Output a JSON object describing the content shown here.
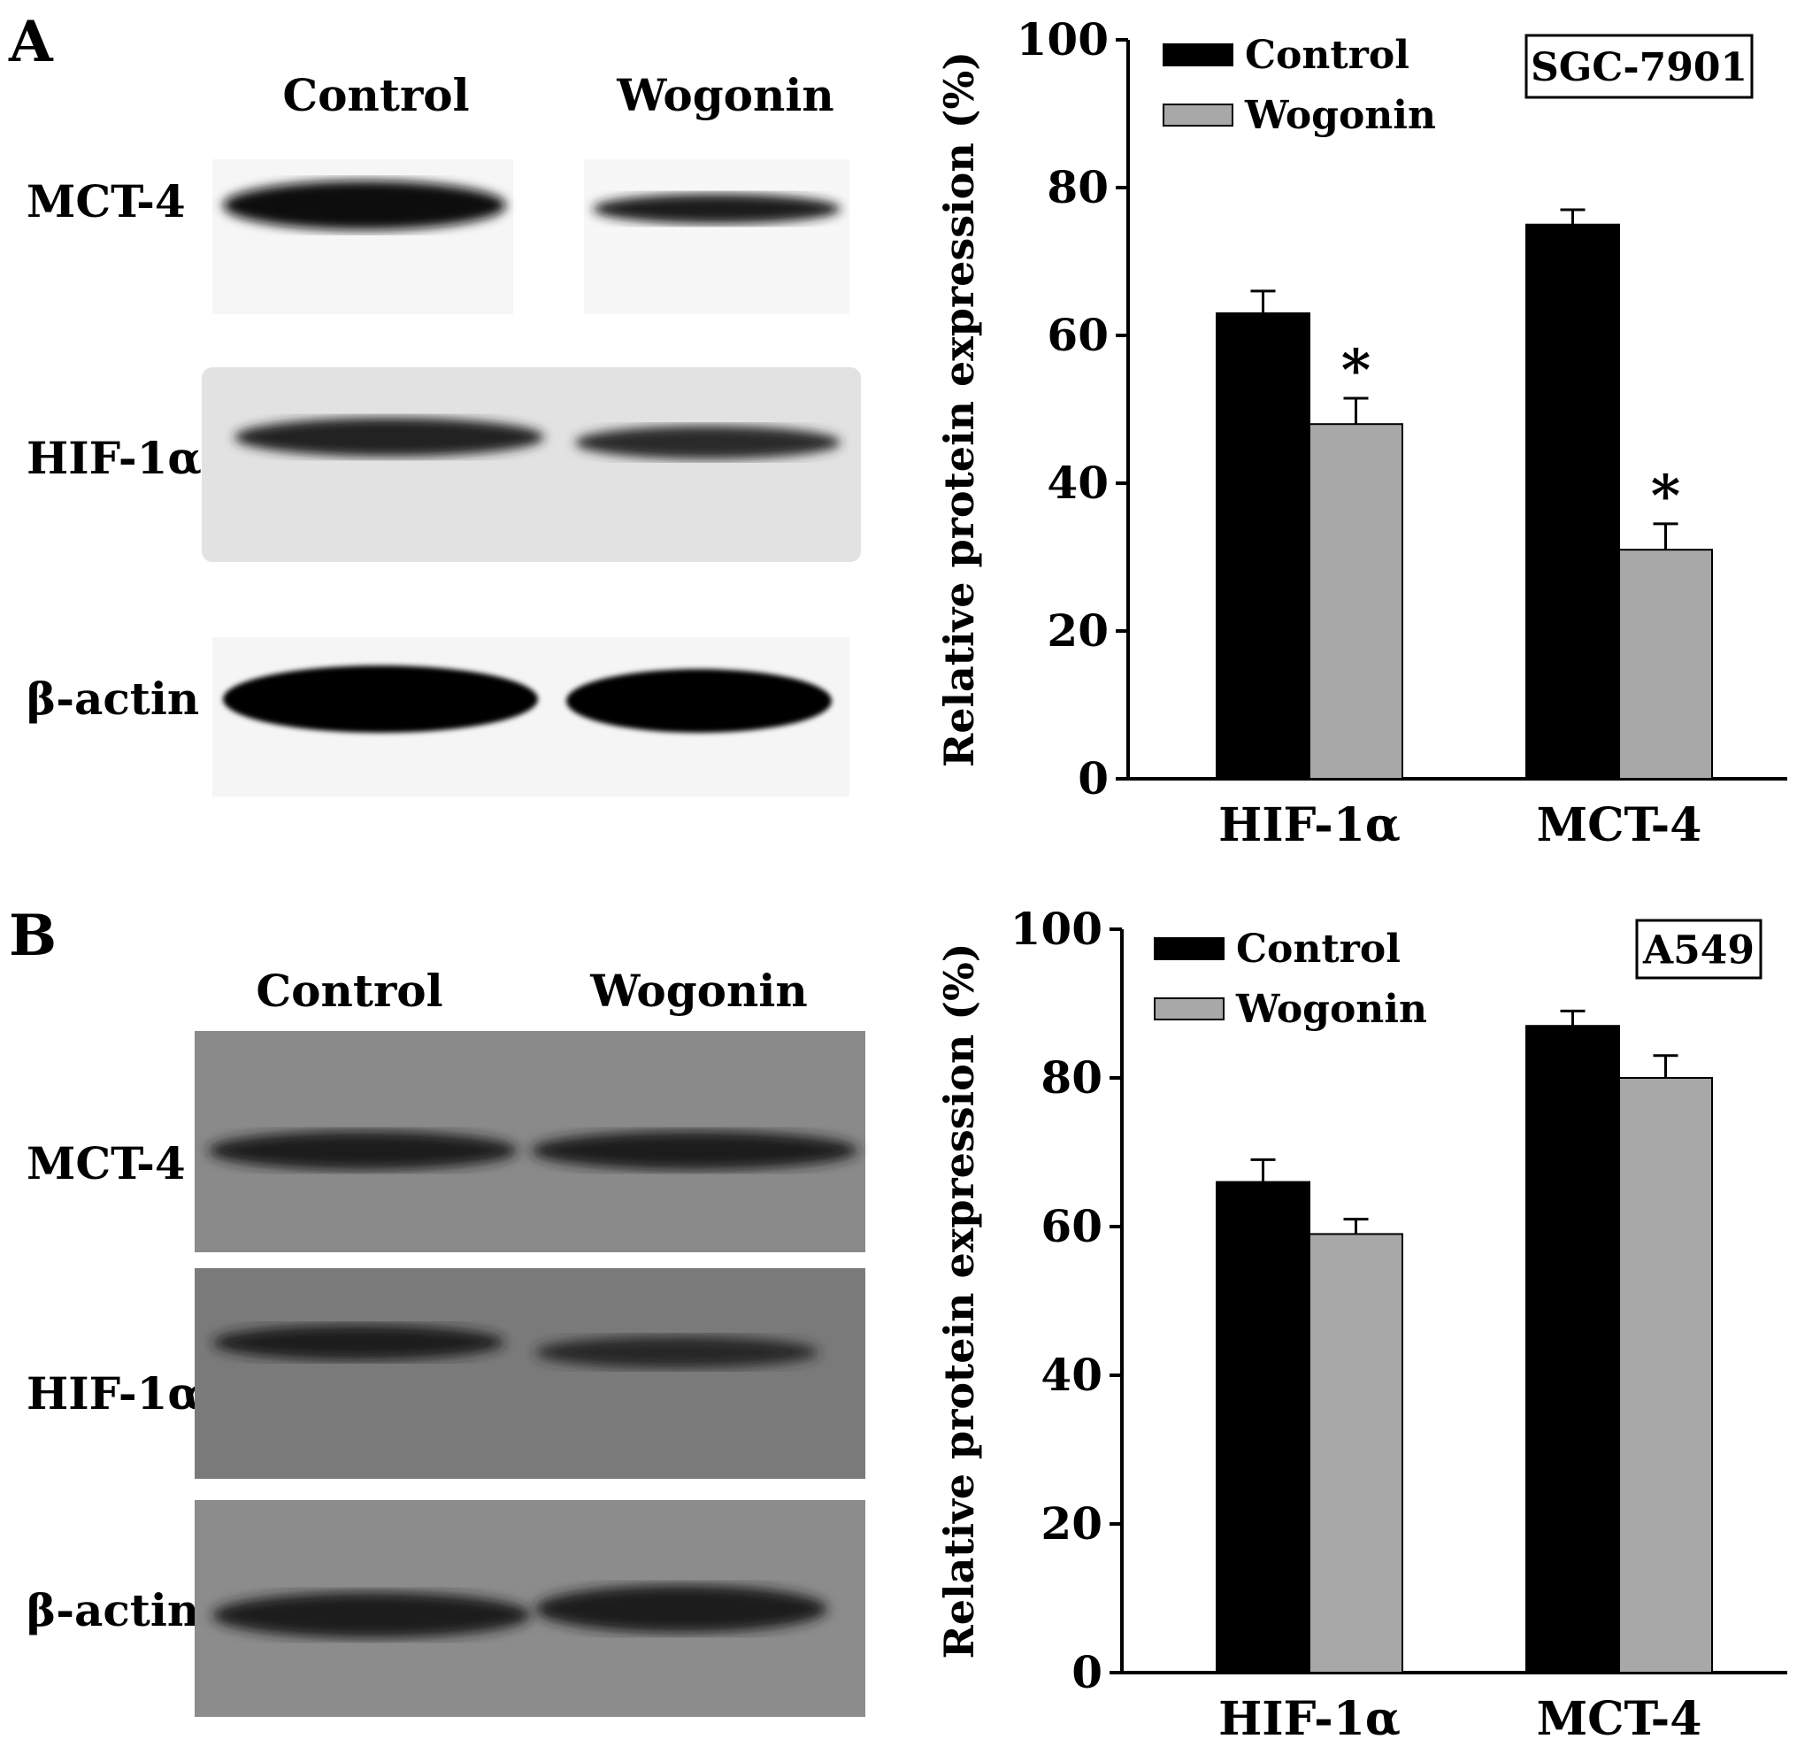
{
  "panels": [
    {
      "letter": "A",
      "blot": {
        "lanes": [
          "Control",
          "Wogonin"
        ],
        "rows": [
          "MCT-4",
          "HIF-1α",
          "β-actin"
        ]
      }
    },
    {
      "letter": "B",
      "blot": {
        "lanes": [
          "Control",
          "Wogonin"
        ],
        "rows": [
          "MCT-4",
          "HIF-1α",
          "β-actin"
        ]
      }
    }
  ],
  "chart_data": [
    {
      "type": "bar",
      "cell_line": "SGC-7901",
      "categories": [
        "HIF-1α",
        "MCT-4"
      ],
      "series": [
        {
          "name": "Control",
          "color": "#000000",
          "values": [
            63,
            75
          ],
          "errors": [
            3,
            2
          ]
        },
        {
          "name": "Wogonin",
          "color": "#a8a8a8",
          "values": [
            48,
            31
          ],
          "errors": [
            3.5,
            3.5
          ]
        }
      ],
      "significance": [
        "*",
        "*"
      ],
      "ylabel": "Relative protein expression (%)",
      "ylim": [
        0,
        100
      ],
      "yticks": [
        0,
        20,
        40,
        60,
        80,
        100
      ],
      "legend": "top-left"
    },
    {
      "type": "bar",
      "cell_line": "A549",
      "categories": [
        "HIF-1α",
        "MCT-4"
      ],
      "series": [
        {
          "name": "Control",
          "color": "#000000",
          "values": [
            66,
            87
          ],
          "errors": [
            3,
            2
          ]
        },
        {
          "name": "Wogonin",
          "color": "#a8a8a8",
          "values": [
            59,
            80
          ],
          "errors": [
            2,
            3
          ]
        }
      ],
      "significance": [
        "",
        ""
      ],
      "ylabel": "Relative protein expression (%)",
      "ylim": [
        0,
        100
      ],
      "yticks": [
        0,
        20,
        40,
        60,
        80,
        100
      ],
      "legend": "top-left"
    }
  ]
}
